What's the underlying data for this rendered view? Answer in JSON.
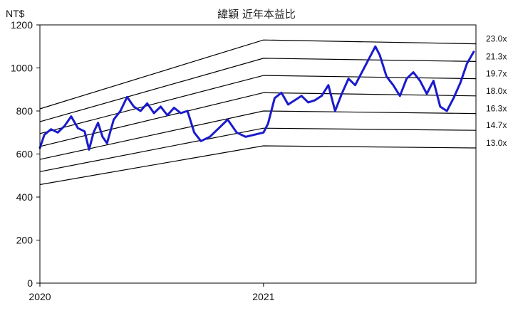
{
  "chart_data": {
    "type": "line",
    "title": "緯穎 近年本益比",
    "ylabel": "NT$",
    "xlabel": "",
    "ylim": [
      0,
      1200
    ],
    "yticks": [
      0,
      200,
      400,
      600,
      800,
      1000,
      1200
    ],
    "xlim": [
      2020.0,
      2021.95
    ],
    "xticks": [
      {
        "value": 2020,
        "label": "2020"
      },
      {
        "value": 2021,
        "label": "2021"
      }
    ],
    "grid": false,
    "colors": {
      "price": "#1a1acc",
      "bands": "#000000",
      "axis": "#000000"
    },
    "bands": [
      {
        "name": "23.0x",
        "x": [
          2020.0,
          2021.0,
          2021.95
        ],
        "values": [
          810,
          1130,
          1112
        ]
      },
      {
        "name": "21.3x",
        "x": [
          2020.0,
          2021.0,
          2021.95
        ],
        "values": [
          750,
          1045,
          1030
        ]
      },
      {
        "name": "19.7x",
        "x": [
          2020.0,
          2021.0,
          2021.95
        ],
        "values": [
          695,
          965,
          950
        ]
      },
      {
        "name": "18.0x",
        "x": [
          2020.0,
          2021.0,
          2021.95
        ],
        "values": [
          635,
          885,
          870
        ]
      },
      {
        "name": "16.3x",
        "x": [
          2020.0,
          2021.0,
          2021.95
        ],
        "values": [
          575,
          800,
          788
        ]
      },
      {
        "name": "14.7x",
        "x": [
          2020.0,
          2021.0,
          2021.95
        ],
        "values": [
          518,
          720,
          710
        ]
      },
      {
        "name": "13.0x",
        "x": [
          2020.0,
          2021.0,
          2021.95
        ],
        "values": [
          458,
          638,
          628
        ]
      }
    ],
    "series": [
      {
        "name": "",
        "x": [
          2020.0,
          2020.02,
          2020.05,
          2020.08,
          2020.11,
          2020.14,
          2020.17,
          2020.2,
          2020.22,
          2020.24,
          2020.26,
          2020.28,
          2020.3,
          2020.33,
          2020.36,
          2020.39,
          2020.42,
          2020.45,
          2020.48,
          2020.51,
          2020.54,
          2020.57,
          2020.6,
          2020.63,
          2020.66,
          2020.69,
          2020.72,
          2020.76,
          2020.8,
          2020.84,
          2020.88,
          2020.92,
          2020.96,
          2021.0,
          2021.02,
          2021.05,
          2021.08,
          2021.11,
          2021.14,
          2021.17,
          2021.2,
          2021.23,
          2021.26,
          2021.29,
          2021.32,
          2021.35,
          2021.38,
          2021.41,
          2021.44,
          2021.47,
          2021.5,
          2021.52,
          2021.55,
          2021.58,
          2021.61,
          2021.64,
          2021.67,
          2021.7,
          2021.73,
          2021.76,
          2021.79,
          2021.82,
          2021.85,
          2021.88,
          2021.91,
          2021.94
        ],
        "values": [
          628,
          690,
          715,
          700,
          730,
          775,
          720,
          705,
          620,
          700,
          745,
          680,
          650,
          760,
          800,
          865,
          820,
          800,
          835,
          790,
          820,
          780,
          815,
          790,
          800,
          700,
          660,
          680,
          720,
          760,
          700,
          680,
          690,
          700,
          740,
          860,
          885,
          830,
          850,
          870,
          840,
          850,
          870,
          920,
          800,
          880,
          950,
          920,
          980,
          1040,
          1100,
          1060,
          960,
          920,
          870,
          950,
          980,
          940,
          880,
          940,
          820,
          800,
          860,
          930,
          1020,
          1075
        ]
      }
    ]
  }
}
